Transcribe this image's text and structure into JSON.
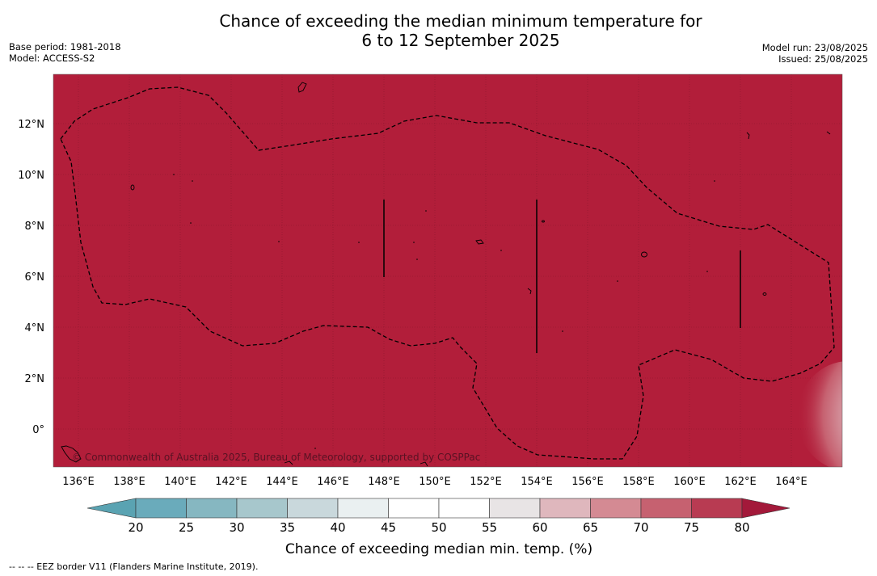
{
  "title_line1": "Chance of exceeding the median minimum temperature for",
  "title_line2": "6 to 12 September 2025",
  "meta_left": {
    "base_period": "Base period: 1981-2018",
    "model": "Model: ACCESS-S2"
  },
  "meta_right": {
    "model_run": "Model run: 23/08/2025",
    "issued": "Issued: 25/08/2025"
  },
  "map": {
    "background_color": "#b21e3a",
    "copyright": "© Commonwealth of Australia 2025, Bureau of Meteorology, supported by COSPPac",
    "lon_ticks": [
      "136°E",
      "138°E",
      "140°E",
      "142°E",
      "144°E",
      "146°E",
      "148°E",
      "150°E",
      "152°E",
      "154°E",
      "156°E",
      "158°E",
      "160°E",
      "162°E",
      "164°E"
    ],
    "lat_ticks": [
      "12°N",
      "10°N",
      "8°N",
      "6°N",
      "4°N",
      "2°N",
      "0°"
    ]
  },
  "colorbar": {
    "ticks": [
      "20",
      "25",
      "30",
      "35",
      "40",
      "45",
      "50",
      "55",
      "60",
      "65",
      "70",
      "75",
      "80"
    ],
    "colors": [
      "#5aa3b2",
      "#6aabbb",
      "#86b7c1",
      "#a7c7cc",
      "#c9d8dc",
      "#eaf0f1",
      "#ffffff",
      "#ffffff",
      "#e8e4e5",
      "#dfb7bd",
      "#d48a93",
      "#c66170",
      "#b83b52",
      "#a3193a"
    ],
    "label": "Chance of exceeding median min. temp. (%)"
  },
  "footer": "--  --  -- EEZ border V11 (Flanders Marine Institute, 2019)."
}
